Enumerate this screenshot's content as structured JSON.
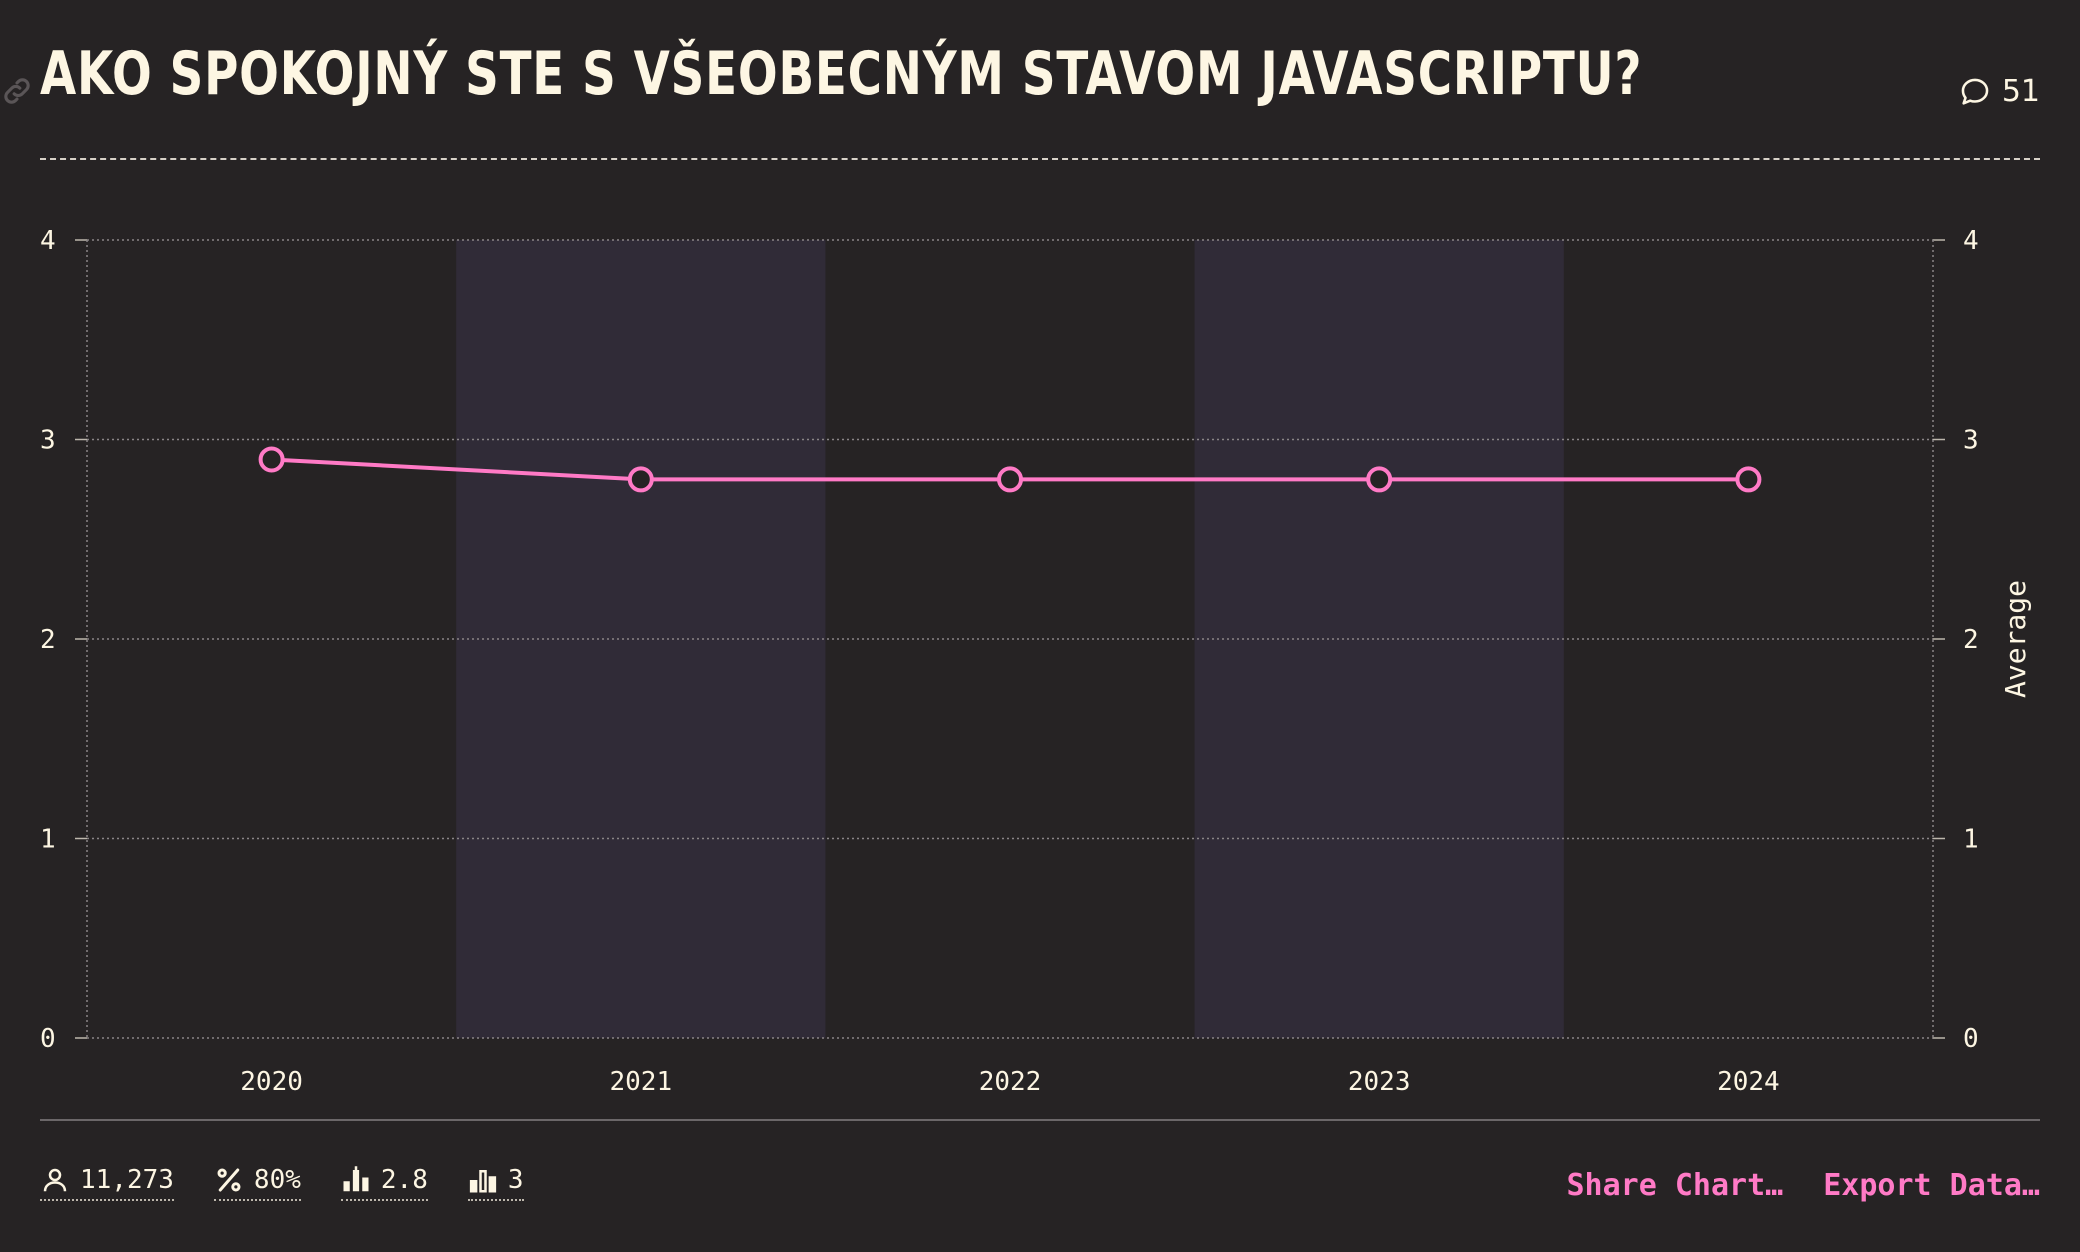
{
  "header": {
    "title": "Ako spokojný ste s všeobecným stavom JavaScriptu?",
    "comment_count": "51",
    "icons": {
      "link": "link-icon",
      "comment": "comment-icon"
    }
  },
  "chart_data": {
    "type": "line",
    "categories": [
      "2020",
      "2021",
      "2022",
      "2023",
      "2024"
    ],
    "series": [
      {
        "values": [
          2.9,
          2.8,
          2.8,
          2.8,
          2.8
        ],
        "color": "#ff7ac6"
      }
    ],
    "ylim": [
      0,
      4
    ],
    "yticks": [
      "0",
      "1",
      "2",
      "3",
      "4"
    ],
    "y2label": "Average",
    "grid": true,
    "colors": {
      "background": "#262324",
      "band": "#302b37",
      "line": "#ff7ac6",
      "text": "#fdf6e3"
    }
  },
  "stats": [
    {
      "icon": "user-icon",
      "value": "11,273"
    },
    {
      "icon": "percent-icon",
      "value": "80%"
    },
    {
      "icon": "average-bars-icon",
      "value": "2.8"
    },
    {
      "icon": "median-bars-icon",
      "value": "3"
    }
  ],
  "actions": {
    "share": "Share Chart…",
    "export": "Export Data…"
  }
}
